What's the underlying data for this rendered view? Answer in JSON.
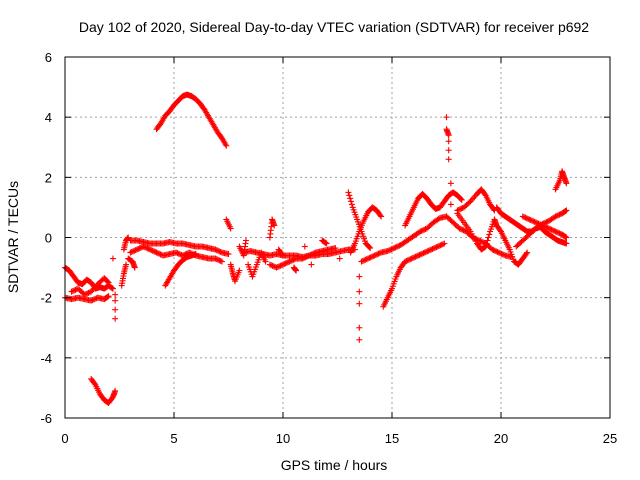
{
  "chart_data": {
    "type": "scatter",
    "title": "Day 102 of 2020, Sidereal Day-to-day VTEC variation (SDTVAR) for receiver p692",
    "xlabel": "GPS time / hours",
    "ylabel": "SDTVAR / TECUs",
    "xlim": [
      0,
      25
    ],
    "ylim": [
      -6,
      6
    ],
    "x_ticks": [
      0,
      5,
      10,
      15,
      20,
      25
    ],
    "y_ticks": [
      -6,
      -4,
      -2,
      0,
      2,
      4,
      6
    ],
    "x_tick_labels": [
      "0",
      "5",
      "10",
      "15",
      "20",
      "25"
    ],
    "y_tick_labels": [
      "-6",
      "-4",
      "-2",
      "0",
      "2",
      "4",
      "6"
    ],
    "grid": true,
    "marker": "+",
    "marker_color": "#ff0000",
    "series": [
      {
        "name": "SDTVAR",
        "points": [
          [
            0.0,
            -2.0
          ],
          [
            0.3,
            -2.05
          ],
          [
            0.6,
            -2.0
          ],
          [
            0.9,
            -2.05
          ],
          [
            1.2,
            -2.1
          ],
          [
            1.5,
            -2.0
          ],
          [
            1.8,
            -2.05
          ],
          [
            2.0,
            -1.95
          ],
          [
            0.0,
            -1.0
          ],
          [
            0.2,
            -1.1
          ],
          [
            0.4,
            -1.3
          ],
          [
            0.6,
            -1.5
          ],
          [
            0.8,
            -1.55
          ],
          [
            1.0,
            -1.4
          ],
          [
            1.2,
            -1.5
          ],
          [
            1.4,
            -1.7
          ],
          [
            1.6,
            -1.65
          ],
          [
            1.8,
            -1.7
          ],
          [
            2.0,
            -1.6
          ],
          [
            2.2,
            -1.7
          ],
          [
            0.3,
            -1.8
          ],
          [
            0.6,
            -1.7
          ],
          [
            0.9,
            -1.9
          ],
          [
            1.2,
            -1.8
          ],
          [
            1.5,
            -1.55
          ],
          [
            1.8,
            -1.35
          ],
          [
            2.0,
            -1.5
          ],
          [
            2.2,
            -0.7
          ],
          [
            2.3,
            -1.9
          ],
          [
            2.3,
            -2.1
          ],
          [
            2.3,
            -2.4
          ],
          [
            2.3,
            -2.7
          ],
          [
            2.6,
            -1.6
          ],
          [
            2.7,
            -1.2
          ],
          [
            2.8,
            -0.9
          ],
          [
            2.7,
            -0.4
          ],
          [
            2.8,
            -0.1
          ],
          [
            2.9,
            0.0
          ],
          [
            1.2,
            -4.7
          ],
          [
            1.4,
            -4.9
          ],
          [
            1.6,
            -5.2
          ],
          [
            1.8,
            -5.4
          ],
          [
            2.0,
            -5.5
          ],
          [
            2.2,
            -5.3
          ],
          [
            2.3,
            -5.1
          ],
          [
            3.0,
            -0.1
          ],
          [
            3.3,
            -0.1
          ],
          [
            3.6,
            -0.15
          ],
          [
            3.9,
            -0.2
          ],
          [
            4.2,
            -0.2
          ],
          [
            4.5,
            -0.2
          ],
          [
            4.8,
            -0.15
          ],
          [
            5.1,
            -0.2
          ],
          [
            5.4,
            -0.2
          ],
          [
            5.7,
            -0.25
          ],
          [
            6.0,
            -0.3
          ],
          [
            6.3,
            -0.3
          ],
          [
            6.6,
            -0.35
          ],
          [
            6.9,
            -0.4
          ],
          [
            7.2,
            -0.5
          ],
          [
            7.5,
            -0.55
          ],
          [
            3.0,
            -0.5
          ],
          [
            3.3,
            -0.4
          ],
          [
            3.6,
            -0.3
          ],
          [
            3.9,
            -0.4
          ],
          [
            4.2,
            -0.5
          ],
          [
            4.5,
            -0.6
          ],
          [
            4.8,
            -0.55
          ],
          [
            5.1,
            -0.5
          ],
          [
            5.4,
            -0.6
          ],
          [
            5.7,
            -0.5
          ],
          [
            6.0,
            -0.6
          ],
          [
            6.3,
            -0.65
          ],
          [
            6.6,
            -0.7
          ],
          [
            6.9,
            -0.7
          ],
          [
            7.2,
            -0.8
          ],
          [
            2.9,
            -0.7
          ],
          [
            3.1,
            -0.8
          ],
          [
            3.2,
            -1.0
          ],
          [
            4.6,
            -1.6
          ],
          [
            4.8,
            -1.35
          ],
          [
            5.0,
            -1.1
          ],
          [
            5.2,
            -0.9
          ],
          [
            5.4,
            -0.75
          ],
          [
            5.6,
            -0.65
          ],
          [
            5.8,
            -0.6
          ],
          [
            6.0,
            -0.55
          ],
          [
            4.2,
            3.6
          ],
          [
            4.4,
            3.8
          ],
          [
            4.6,
            4.05
          ],
          [
            4.8,
            4.2
          ],
          [
            5.0,
            4.4
          ],
          [
            5.2,
            4.55
          ],
          [
            5.4,
            4.7
          ],
          [
            5.6,
            4.75
          ],
          [
            5.8,
            4.7
          ],
          [
            6.0,
            4.6
          ],
          [
            6.2,
            4.45
          ],
          [
            6.4,
            4.25
          ],
          [
            6.6,
            4.0
          ],
          [
            6.8,
            3.75
          ],
          [
            7.0,
            3.5
          ],
          [
            7.2,
            3.3
          ],
          [
            7.4,
            3.05
          ],
          [
            7.4,
            0.6
          ],
          [
            7.6,
            0.3
          ],
          [
            7.6,
            -0.9
          ],
          [
            7.7,
            -1.2
          ],
          [
            7.8,
            -1.45
          ],
          [
            8.0,
            -1.1
          ],
          [
            8.0,
            -0.3
          ],
          [
            8.2,
            -0.6
          ],
          [
            8.3,
            -0.1
          ],
          [
            8.4,
            -0.9
          ],
          [
            8.6,
            -1.3
          ],
          [
            8.8,
            -0.9
          ],
          [
            9.0,
            -0.5
          ],
          [
            9.2,
            -0.8
          ],
          [
            9.4,
            0.0
          ],
          [
            9.5,
            0.6
          ],
          [
            9.6,
            0.4
          ],
          [
            9.8,
            -0.4
          ],
          [
            10.0,
            -0.6
          ],
          [
            8.2,
            -0.5
          ],
          [
            8.5,
            -0.45
          ],
          [
            8.8,
            -0.5
          ],
          [
            9.1,
            -0.55
          ],
          [
            9.4,
            -0.6
          ],
          [
            9.7,
            -0.55
          ],
          [
            10.0,
            -0.6
          ],
          [
            10.3,
            -0.6
          ],
          [
            10.6,
            -0.6
          ],
          [
            10.9,
            -0.65
          ],
          [
            11.2,
            -0.6
          ],
          [
            11.5,
            -0.6
          ],
          [
            11.8,
            -0.55
          ],
          [
            12.1,
            -0.55
          ],
          [
            12.4,
            -0.5
          ],
          [
            12.7,
            -0.45
          ],
          [
            13.0,
            -0.4
          ],
          [
            13.3,
            -0.4
          ],
          [
            9.4,
            -0.9
          ],
          [
            9.7,
            -1.0
          ],
          [
            10.0,
            -0.9
          ],
          [
            10.3,
            -0.8
          ],
          [
            10.6,
            -0.7
          ],
          [
            10.9,
            -0.7
          ],
          [
            11.2,
            -0.6
          ],
          [
            11.5,
            -0.5
          ],
          [
            11.8,
            -0.45
          ],
          [
            12.1,
            -0.4
          ],
          [
            12.4,
            -0.35
          ],
          [
            10.5,
            -1.0
          ],
          [
            10.6,
            -1.1
          ],
          [
            11.0,
            -0.3
          ],
          [
            11.3,
            -0.9
          ],
          [
            11.8,
            -0.1
          ],
          [
            12.0,
            -0.2
          ],
          [
            12.6,
            -0.7
          ],
          [
            13.0,
            1.5
          ],
          [
            13.2,
            1.0
          ],
          [
            13.4,
            0.6
          ],
          [
            13.6,
            0.2
          ],
          [
            13.8,
            -0.2
          ],
          [
            14.0,
            -0.35
          ],
          [
            13.1,
            -0.5
          ],
          [
            13.3,
            -0.2
          ],
          [
            13.5,
            0.2
          ],
          [
            13.7,
            0.55
          ],
          [
            13.9,
            0.85
          ],
          [
            14.1,
            1.0
          ],
          [
            14.3,
            0.9
          ],
          [
            14.5,
            0.7
          ],
          [
            13.5,
            -1.3
          ],
          [
            13.5,
            -1.8
          ],
          [
            13.5,
            -2.2
          ],
          [
            13.5,
            -3.0
          ],
          [
            13.5,
            -3.4
          ],
          [
            13.6,
            -0.8
          ],
          [
            13.9,
            -0.7
          ],
          [
            14.2,
            -0.6
          ],
          [
            14.5,
            -0.5
          ],
          [
            14.8,
            -0.45
          ],
          [
            15.1,
            -0.35
          ],
          [
            15.4,
            -0.25
          ],
          [
            15.7,
            -0.1
          ],
          [
            16.0,
            0.05
          ],
          [
            16.3,
            0.2
          ],
          [
            16.6,
            0.3
          ],
          [
            16.9,
            0.5
          ],
          [
            17.2,
            0.65
          ],
          [
            17.5,
            0.7
          ],
          [
            14.6,
            -2.3
          ],
          [
            14.8,
            -2.0
          ],
          [
            15.0,
            -1.7
          ],
          [
            15.2,
            -1.3
          ],
          [
            15.4,
            -1.0
          ],
          [
            15.6,
            -0.8
          ],
          [
            15.9,
            -0.7
          ],
          [
            16.2,
            -0.6
          ],
          [
            16.5,
            -0.5
          ],
          [
            16.8,
            -0.4
          ],
          [
            17.1,
            -0.3
          ],
          [
            17.4,
            -0.2
          ],
          [
            15.6,
            0.4
          ],
          [
            15.8,
            0.7
          ],
          [
            16.0,
            1.0
          ],
          [
            16.2,
            1.3
          ],
          [
            16.4,
            1.45
          ],
          [
            16.6,
            1.3
          ],
          [
            16.8,
            1.1
          ],
          [
            17.0,
            0.95
          ],
          [
            17.2,
            1.0
          ],
          [
            17.4,
            1.2
          ],
          [
            17.6,
            1.4
          ],
          [
            17.8,
            1.5
          ],
          [
            18.0,
            1.4
          ],
          [
            18.2,
            1.25
          ],
          [
            17.5,
            4.0
          ],
          [
            17.5,
            3.6
          ],
          [
            17.6,
            3.4
          ],
          [
            17.6,
            3.2
          ],
          [
            17.6,
            2.9
          ],
          [
            17.6,
            2.6
          ],
          [
            17.7,
            1.8
          ],
          [
            17.7,
            1.1
          ],
          [
            17.5,
            0.7
          ],
          [
            17.8,
            0.5
          ],
          [
            18.1,
            0.3
          ],
          [
            18.4,
            0.2
          ],
          [
            18.7,
            0.0
          ],
          [
            19.0,
            -0.1
          ],
          [
            19.3,
            -0.2
          ],
          [
            19.6,
            -0.4
          ],
          [
            19.9,
            -0.5
          ],
          [
            20.2,
            -0.6
          ],
          [
            20.5,
            -0.65
          ],
          [
            18.0,
            0.9
          ],
          [
            18.3,
            1.0
          ],
          [
            18.6,
            1.2
          ],
          [
            18.9,
            1.45
          ],
          [
            19.1,
            1.6
          ],
          [
            19.3,
            1.4
          ],
          [
            19.5,
            1.1
          ],
          [
            19.7,
            0.9
          ],
          [
            18.0,
            0.8
          ],
          [
            18.3,
            0.5
          ],
          [
            18.6,
            0.2
          ],
          [
            18.9,
            -0.2
          ],
          [
            19.1,
            -0.4
          ],
          [
            19.3,
            -0.3
          ],
          [
            19.5,
            0.2
          ],
          [
            19.7,
            0.6
          ],
          [
            19.8,
            0.4
          ],
          [
            20.0,
            0.2
          ],
          [
            20.2,
            -0.1
          ],
          [
            20.4,
            -0.4
          ],
          [
            20.6,
            -0.8
          ],
          [
            20.8,
            -0.9
          ],
          [
            21.0,
            -0.7
          ],
          [
            21.2,
            -0.5
          ],
          [
            19.8,
            1.0
          ],
          [
            20.0,
            0.8
          ],
          [
            20.2,
            0.7
          ],
          [
            20.4,
            0.6
          ],
          [
            20.6,
            0.5
          ],
          [
            20.8,
            0.4
          ],
          [
            21.0,
            0.3
          ],
          [
            21.2,
            0.2
          ],
          [
            21.4,
            0.2
          ],
          [
            21.6,
            0.3
          ],
          [
            21.8,
            0.35
          ],
          [
            22.0,
            0.2
          ],
          [
            22.2,
            0.1
          ],
          [
            22.4,
            0.0
          ],
          [
            22.6,
            -0.1
          ],
          [
            22.8,
            -0.15
          ],
          [
            23.0,
            -0.2
          ],
          [
            20.7,
            -0.3
          ],
          [
            21.0,
            -0.1
          ],
          [
            21.3,
            0.1
          ],
          [
            21.6,
            0.3
          ],
          [
            21.9,
            0.45
          ],
          [
            22.2,
            0.55
          ],
          [
            22.5,
            0.7
          ],
          [
            22.8,
            0.8
          ],
          [
            23.0,
            0.9
          ],
          [
            21.0,
            0.7
          ],
          [
            21.3,
            0.6
          ],
          [
            21.6,
            0.5
          ],
          [
            21.9,
            0.4
          ],
          [
            22.2,
            0.3
          ],
          [
            22.5,
            0.2
          ],
          [
            22.8,
            0.1
          ],
          [
            23.0,
            0.0
          ],
          [
            22.5,
            1.6
          ],
          [
            22.7,
            1.9
          ],
          [
            22.8,
            2.2
          ],
          [
            22.9,
            2.0
          ],
          [
            23.0,
            1.8
          ]
        ]
      }
    ]
  }
}
